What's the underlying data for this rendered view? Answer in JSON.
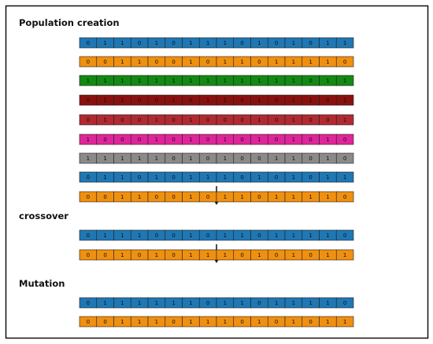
{
  "sections": [
    {
      "title": "Population creation",
      "rows": [
        [
          0,
          1,
          1,
          0,
          1,
          0,
          1,
          1,
          1,
          0,
          1,
          0,
          1,
          0,
          1,
          1
        ],
        [
          0,
          0,
          1,
          1,
          0,
          0,
          1,
          0,
          1,
          1,
          0,
          1,
          1,
          1,
          1,
          0
        ],
        [
          1,
          1,
          1,
          1,
          1,
          1,
          1,
          1,
          1,
          1,
          1,
          1,
          1,
          0,
          1,
          1
        ],
        [
          0,
          1,
          1,
          0,
          0,
          1,
          0,
          1,
          1,
          0,
          1,
          0,
          1,
          1,
          0,
          1
        ],
        [
          0,
          1,
          0,
          0,
          1,
          0,
          1,
          0,
          0,
          0,
          1,
          0,
          1,
          0,
          0,
          1
        ],
        [
          1,
          0,
          0,
          0,
          1,
          0,
          1,
          0,
          1,
          0,
          1,
          0,
          1,
          0,
          1,
          0
        ],
        [
          1,
          1,
          1,
          1,
          1,
          0,
          1,
          0,
          1,
          0,
          0,
          1,
          1,
          0,
          1,
          0
        ],
        [
          0,
          1,
          1,
          0,
          1,
          0,
          1,
          1,
          1,
          0,
          1,
          0,
          1,
          0,
          1,
          1
        ],
        [
          0,
          0,
          1,
          1,
          0,
          0,
          1,
          0,
          1,
          1,
          0,
          1,
          1,
          1,
          1,
          0
        ]
      ]
    },
    {
      "title": "crossover",
      "rows": [
        [
          0,
          1,
          1,
          1,
          0,
          0,
          1,
          0,
          1,
          1,
          0,
          1,
          1,
          1,
          1,
          0
        ],
        [
          0,
          0,
          1,
          0,
          1,
          0,
          1,
          1,
          1,
          0,
          1,
          0,
          1,
          0,
          1,
          1
        ]
      ]
    },
    {
      "title": "Mutation",
      "rows": [
        [
          0,
          1,
          1,
          1,
          1,
          1,
          1,
          0,
          1,
          1,
          0,
          1,
          1,
          1,
          1,
          0
        ],
        [
          0,
          0,
          1,
          1,
          1,
          0,
          1,
          1,
          1,
          0,
          1,
          0,
          1,
          0,
          1,
          1
        ]
      ]
    }
  ]
}
